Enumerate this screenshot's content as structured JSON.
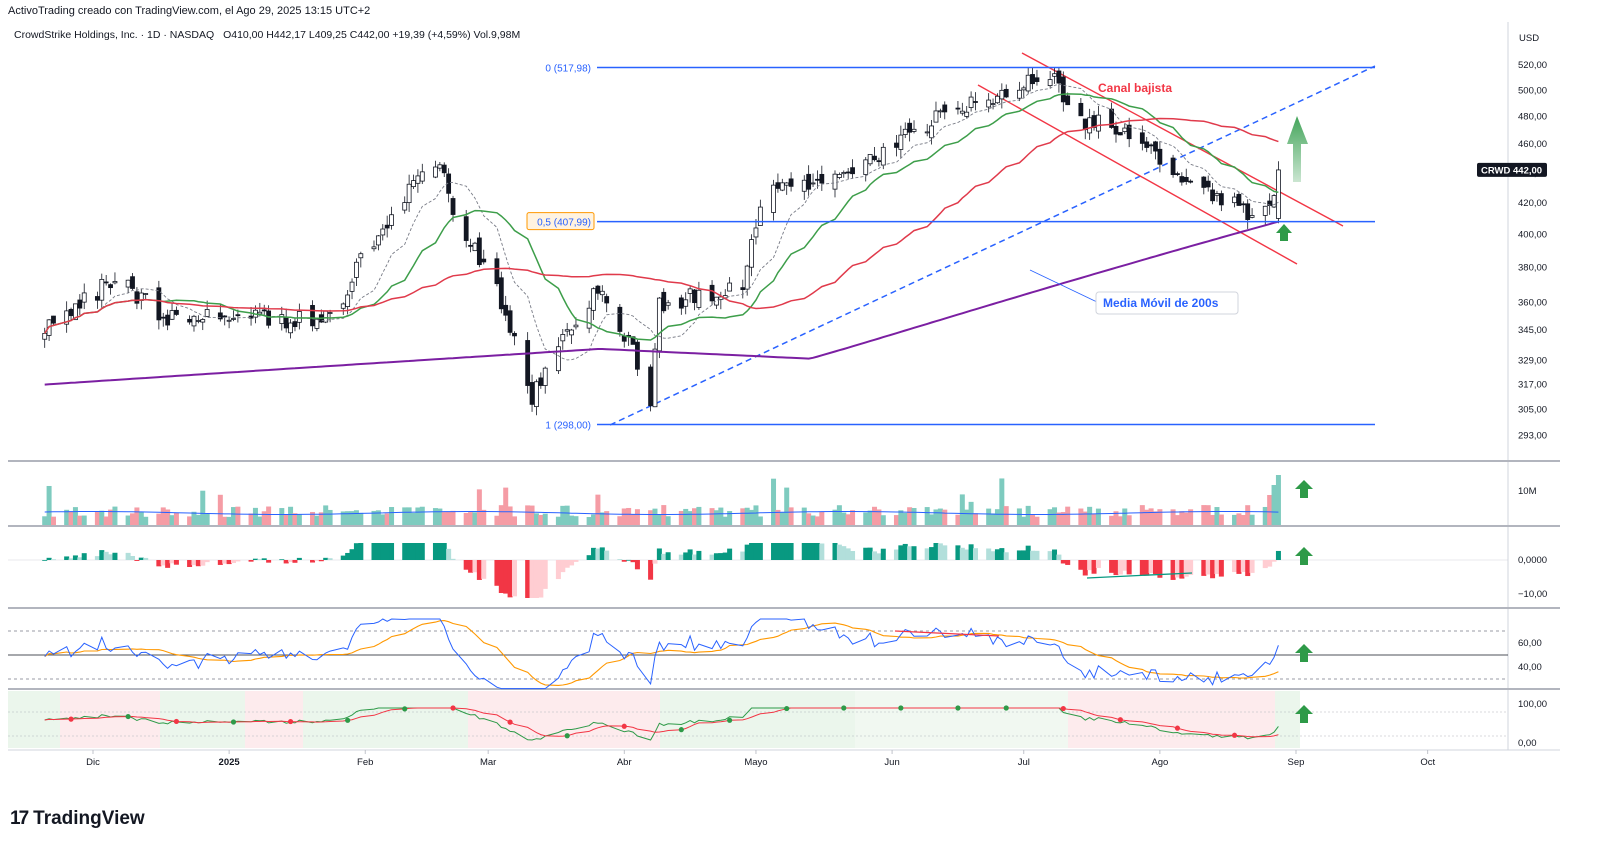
{
  "header": {
    "attribution": "ActivoTrading creado con TradingView.com, el Ago 29, 2025 13:15 UTC+2",
    "symbol_line": "CrowdStrike Holdings, Inc. · 1D · NASDAQ",
    "ohlc": "O410,00  H442,17  L409,25  C442,00  +19,39 (+4,59%)  Vol.9,98M",
    "currency": "USD"
  },
  "brand": {
    "name": "TradingView",
    "mark": "17"
  },
  "colors": {
    "up": "#089981",
    "down": "#f23645",
    "ma_fast": "#3d9e4a",
    "ma_mid": "#e03a4b",
    "ma_200": "#7b1fa2",
    "fib": "#2962ff",
    "channel": "#f23645",
    "arrow": "#2e9a48",
    "rsi": "#2962ff",
    "rsi_ma": "#ff9800"
  },
  "chart_data": {
    "type": "candlestick",
    "title": "CrowdStrike Holdings, Inc. · 1D · NASDAQ",
    "price_axis": {
      "scale": "log",
      "ticks": [
        "520,00",
        "500,00",
        "480,00",
        "460,00",
        "440,00",
        "420,00",
        "400,00",
        "380,00",
        "360,00",
        "345,00",
        "329,00",
        "317,00",
        "305,00",
        "293,00"
      ],
      "last_price": "442,00",
      "last_label": "CRWD"
    },
    "time_axis": [
      "Dic",
      "2025",
      "Feb",
      "Mar",
      "Abr",
      "Mayo",
      "Jun",
      "Jul",
      "Ago",
      "Sep",
      "Oct"
    ],
    "anchors": [
      {
        "date": "2024-11-20",
        "close": 345
      },
      {
        "date": "2024-12-06",
        "close": 373
      },
      {
        "date": "2024-12-18",
        "close": 352
      },
      {
        "date": "2025-01-08",
        "close": 352
      },
      {
        "date": "2025-01-24",
        "close": 350
      },
      {
        "date": "2025-02-03",
        "close": 398
      },
      {
        "date": "2025-02-18",
        "close": 452
      },
      {
        "date": "2025-02-21",
        "close": 410
      },
      {
        "date": "2025-03-03",
        "close": 368
      },
      {
        "date": "2025-03-11",
        "close": 311
      },
      {
        "date": "2025-03-26",
        "close": 370
      },
      {
        "date": "2025-04-04",
        "close": 328
      },
      {
        "date": "2025-04-07",
        "close": 305
      },
      {
        "date": "2025-04-09",
        "close": 358
      },
      {
        "date": "2025-04-28",
        "close": 370
      },
      {
        "date": "2025-05-02",
        "close": 422
      },
      {
        "date": "2025-05-14",
        "close": 436
      },
      {
        "date": "2025-05-22",
        "close": 438
      },
      {
        "date": "2025-06-06",
        "close": 470
      },
      {
        "date": "2025-06-20",
        "close": 490
      },
      {
        "date": "2025-07-01",
        "close": 505
      },
      {
        "date": "2025-07-07",
        "close": 511
      },
      {
        "date": "2025-07-14",
        "close": 478
      },
      {
        "date": "2025-07-25",
        "close": 470
      },
      {
        "date": "2025-08-04",
        "close": 440
      },
      {
        "date": "2025-08-08",
        "close": 430
      },
      {
        "date": "2025-08-22",
        "close": 414
      },
      {
        "date": "2025-08-27",
        "close": 423
      },
      {
        "date": "2025-08-28",
        "close": 442
      }
    ],
    "fib_levels": [
      {
        "label": "0 (517,98)",
        "price": 517.98
      },
      {
        "label": "0,5 (407,99)",
        "price": 407.99
      },
      {
        "label": "1 (298,00)",
        "price": 298.0
      }
    ],
    "annotations": {
      "channel": "Canal bajista",
      "ma200": "Media Móvil de 200s"
    },
    "volume_axis": "10M",
    "macd_axis": [
      "0,0000",
      "−10,00"
    ],
    "rsi_axis": [
      "60,00",
      "40,00"
    ],
    "osc_axis": [
      "100,00",
      "0,00"
    ]
  }
}
